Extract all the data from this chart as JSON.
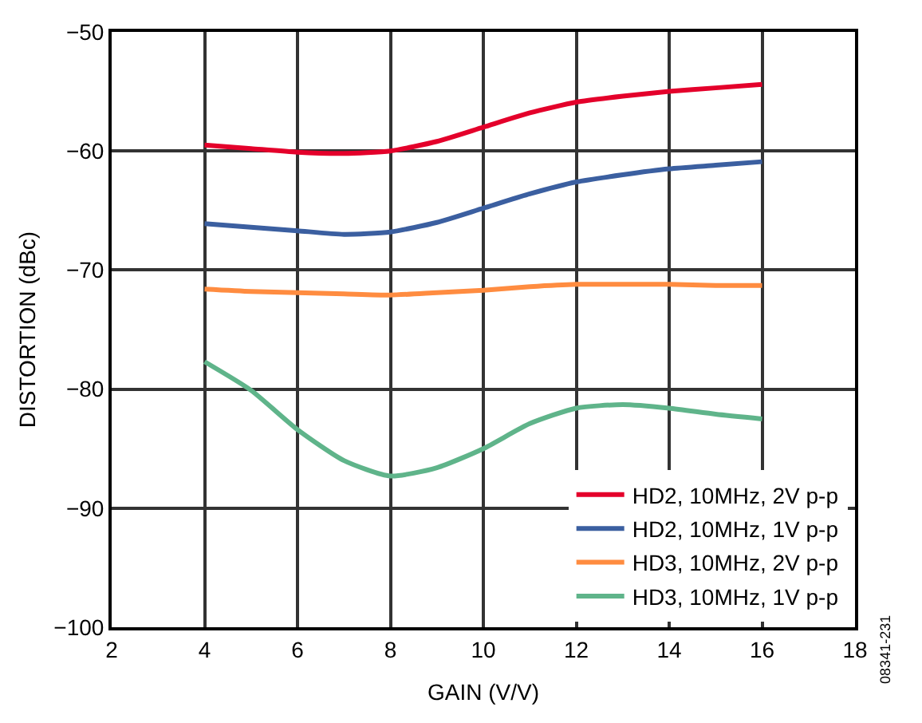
{
  "chart_data": {
    "type": "line",
    "xlabel": "GAIN (V/V)",
    "ylabel": "DISTORTION (dBc)",
    "x": [
      4,
      5,
      6,
      7,
      8,
      9,
      10,
      11,
      12,
      13,
      14,
      15,
      16
    ],
    "series": [
      {
        "name": "HD2, 10MHz, 2V p-p",
        "color": "#e4002b",
        "values": [
          -59.5,
          -59.8,
          -60.1,
          -60.2,
          -60.0,
          -59.2,
          -58.0,
          -56.8,
          -55.9,
          -55.4,
          -55.0,
          -54.7,
          -54.4
        ]
      },
      {
        "name": "HD2, 10MHz, 1V p-p",
        "color": "#3b5fa0",
        "values": [
          -66.1,
          -66.4,
          -66.7,
          -67.0,
          -66.8,
          -66.0,
          -64.8,
          -63.6,
          -62.6,
          -62.0,
          -61.5,
          -61.2,
          -60.9
        ]
      },
      {
        "name": "HD3, 10MHz, 2V p-p",
        "color": "#ff8c40",
        "values": [
          -71.6,
          -71.8,
          -71.9,
          -72.0,
          -72.1,
          -71.9,
          -71.7,
          -71.4,
          -71.2,
          -71.2,
          -71.2,
          -71.3,
          -71.3
        ]
      },
      {
        "name": "HD3, 10MHz, 1V p-p",
        "color": "#5fb48a",
        "values": [
          -77.7,
          -80.1,
          -83.4,
          -86.0,
          -87.3,
          -86.6,
          -85.0,
          -82.9,
          -81.6,
          -81.3,
          -81.6,
          -82.1,
          -82.5
        ]
      }
    ],
    "xlim": [
      2,
      18
    ],
    "xticks": [
      2,
      4,
      6,
      8,
      10,
      12,
      14,
      16,
      18
    ],
    "ylim": [
      -100,
      -50
    ],
    "yticks": [
      -100,
      -90,
      -80,
      -70,
      -60,
      -50
    ],
    "grid": true,
    "legend": "bottom right",
    "marker": "none",
    "line_style": "solid",
    "annotations": [
      "08341-231"
    ]
  }
}
